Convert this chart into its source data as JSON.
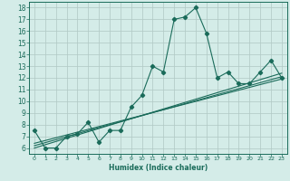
{
  "title": "",
  "xlabel": "Humidex (Indice chaleur)",
  "ylabel": "",
  "bg_color": "#d4ece8",
  "line_color": "#1a6b5a",
  "xlim": [
    -0.5,
    23.5
  ],
  "ylim": [
    5.5,
    18.5
  ],
  "xticks": [
    0,
    1,
    2,
    3,
    4,
    5,
    6,
    7,
    8,
    9,
    10,
    11,
    12,
    13,
    14,
    15,
    16,
    17,
    18,
    19,
    20,
    21,
    22,
    23
  ],
  "yticks": [
    6,
    7,
    8,
    9,
    10,
    11,
    12,
    13,
    14,
    15,
    16,
    17,
    18
  ],
  "main_x": [
    0,
    1,
    2,
    3,
    4,
    5,
    6,
    7,
    8,
    9,
    10,
    11,
    12,
    13,
    14,
    15,
    16,
    17,
    18,
    19,
    20,
    21,
    22,
    23
  ],
  "main_y": [
    7.5,
    6.0,
    6.0,
    7.0,
    7.2,
    8.2,
    6.5,
    7.5,
    7.5,
    9.5,
    10.5,
    13.0,
    12.5,
    17.0,
    17.2,
    18.0,
    15.8,
    12.0,
    12.5,
    11.5,
    11.5,
    12.5,
    13.5,
    12.0
  ],
  "line1_x": [
    0,
    23
  ],
  "line1_y": [
    6.4,
    11.9
  ],
  "line2_x": [
    0,
    23
  ],
  "line2_y": [
    6.2,
    12.1
  ],
  "line3_x": [
    0,
    23
  ],
  "line3_y": [
    6.0,
    12.4
  ],
  "grid_color": "#b0c8c4",
  "font_color": "#1a6b5a",
  "xlabel_fontsize": 5.5,
  "tick_fontsize_x": 4.5,
  "tick_fontsize_y": 5.5
}
